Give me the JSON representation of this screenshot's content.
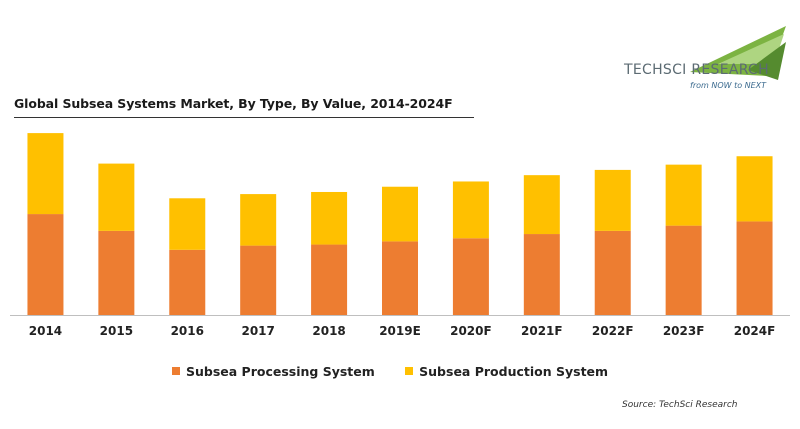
{
  "title": "Global Subsea Systems Market, By Type, By Value, 2014-2024F",
  "logo": {
    "name": "TechSci Research",
    "text": "TECHSCI RESEARCH",
    "tagline": "from NOW to NEXT"
  },
  "source": "Source: TechSci Research",
  "colors": {
    "processing": "#ED7D31",
    "production": "#FFC000",
    "axis": "#BFBFBF"
  },
  "chart_data": {
    "type": "bar",
    "stacked": true,
    "categories": [
      "2014",
      "2015",
      "2016",
      "2017",
      "2018",
      "2019E",
      "2020F",
      "2021F",
      "2022F",
      "2023F",
      "2024F"
    ],
    "series": [
      {
        "name": "Subsea Processing System",
        "values": [
          96,
          80,
          62,
          66,
          67,
          70,
          73,
          77,
          80,
          85,
          89
        ]
      },
      {
        "name": "Subsea Production System",
        "values": [
          77,
          64,
          49,
          49,
          50,
          52,
          54,
          56,
          58,
          58,
          62
        ]
      }
    ],
    "ylim": [
      0,
      175
    ],
    "grid": false,
    "legend_position": "bottom"
  }
}
